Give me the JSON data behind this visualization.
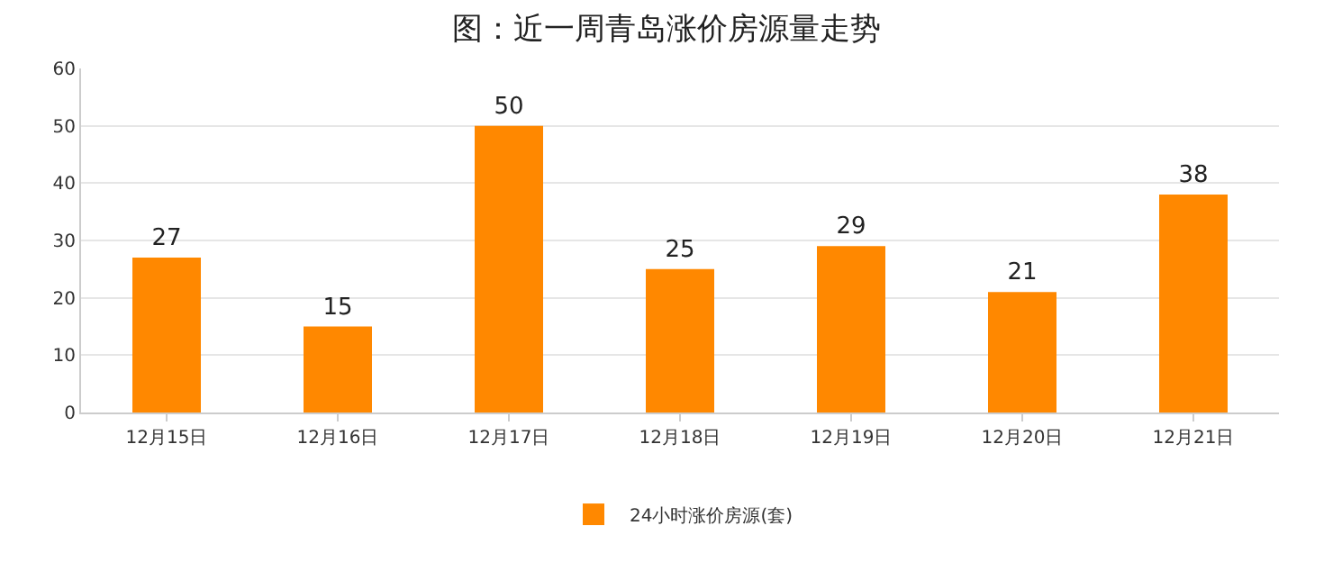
{
  "chart_data": {
    "type": "bar",
    "title": "图：近一周青岛涨价房源量走势",
    "categories": [
      "12月15日",
      "12月16日",
      "12月17日",
      "12月18日",
      "12月19日",
      "12月20日",
      "12月21日"
    ],
    "series": [
      {
        "name": "24小时涨价房源(套)",
        "color": "#ff8800",
        "values": [
          27,
          15,
          50,
          25,
          29,
          21,
          38
        ]
      }
    ],
    "ylim": [
      0,
      60
    ],
    "yticks": [
      0,
      10,
      20,
      30,
      40,
      50,
      60
    ],
    "grid": "y",
    "legend": "bottom",
    "data_labels": true
  }
}
